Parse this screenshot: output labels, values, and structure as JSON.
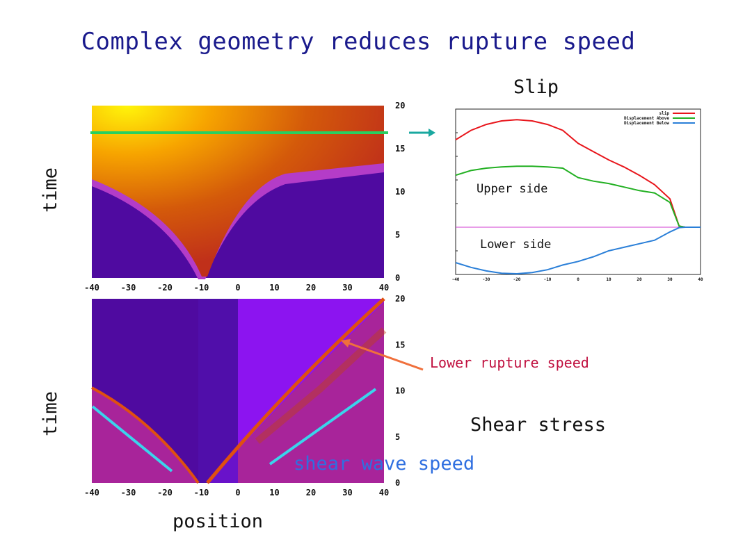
{
  "title": "Complex geometry reduces rupture speed",
  "top_panel": {
    "ylabel": "time",
    "x_ticks": [
      "-40",
      "-30",
      "-20",
      "-10",
      "0",
      "10",
      "20",
      "30",
      "40"
    ],
    "y_ticks": [
      "0",
      "5",
      "10",
      "15",
      "20"
    ]
  },
  "bottom_panel": {
    "ylabel": "time",
    "xlabel": "position",
    "side_label": "Shear stress",
    "x_ticks": [
      "-40",
      "-30",
      "-20",
      "-10",
      "0",
      "10",
      "20",
      "30",
      "40"
    ],
    "y_ticks": [
      "0",
      "5",
      "10",
      "15",
      "20"
    ],
    "annotation_rupture": "Lower rupture speed",
    "annotation_shear": "shear wave speed"
  },
  "slip_panel": {
    "heading": "Slip",
    "upper_label": "Upper side",
    "lower_label": "Lower side",
    "legend": [
      "slip",
      "Displacement Above",
      "Displacement Below"
    ],
    "x_ticks": [
      "-40",
      "-30",
      "-20",
      "-10",
      "0",
      "10",
      "20",
      "30",
      "40"
    ]
  },
  "colors": {
    "title": "#1a1a8c",
    "slip": "#e8151b",
    "above": "#22b022",
    "below": "#2a7fd8",
    "zero_line": "#d23bd2",
    "marker_line": "#28d060",
    "shear_line": "#3ad4ec",
    "rupture_arrow": "#f0703c"
  },
  "chart_data": [
    {
      "type": "heatmap",
      "title": "",
      "xlabel": "",
      "ylabel": "time",
      "xlim": [
        -40,
        40
      ],
      "ylim": [
        0,
        20
      ],
      "marker_time": 17
    },
    {
      "type": "heatmap",
      "title": "Shear stress",
      "xlabel": "position",
      "ylabel": "time",
      "xlim": [
        -40,
        40
      ],
      "ylim": [
        0,
        20
      ]
    },
    {
      "type": "line",
      "title": "Slip",
      "xlim": [
        -40,
        40
      ],
      "ylim": [
        -2,
        5
      ],
      "x": [
        -40,
        -35,
        -30,
        -25,
        -20,
        -15,
        -10,
        -5,
        0,
        5,
        10,
        15,
        20,
        25,
        30,
        33,
        35,
        40
      ],
      "series": [
        {
          "name": "slip",
          "values": [
            3.7,
            4.1,
            4.35,
            4.5,
            4.55,
            4.5,
            4.35,
            4.1,
            3.55,
            3.2,
            2.85,
            2.55,
            2.2,
            1.8,
            1.2,
            0.05,
            0,
            0
          ]
        },
        {
          "name": "Displacement Above",
          "values": [
            2.2,
            2.4,
            2.5,
            2.55,
            2.58,
            2.58,
            2.55,
            2.5,
            2.1,
            1.95,
            1.85,
            1.7,
            1.55,
            1.45,
            1.05,
            0.05,
            0,
            0
          ]
        },
        {
          "name": "Displacement Below",
          "values": [
            -1.5,
            -1.7,
            -1.85,
            -1.95,
            -1.97,
            -1.92,
            -1.8,
            -1.6,
            -1.45,
            -1.25,
            -1.0,
            -0.85,
            -0.7,
            -0.55,
            -0.2,
            -0.02,
            0,
            0
          ]
        }
      ]
    }
  ]
}
